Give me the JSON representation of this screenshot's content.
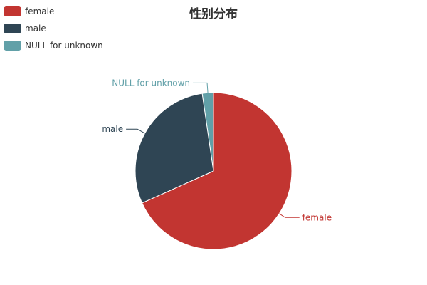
{
  "chart_data": {
    "type": "pie",
    "title": "性别分布",
    "legend_position": "top-left",
    "slices": [
      {
        "name": "female",
        "value": 68.3,
        "color": "#c23531"
      },
      {
        "name": "male",
        "value": 29.4,
        "color": "#2f4554"
      },
      {
        "name": "NULL for unknown",
        "value": 2.3,
        "color": "#61a0a8"
      }
    ]
  }
}
